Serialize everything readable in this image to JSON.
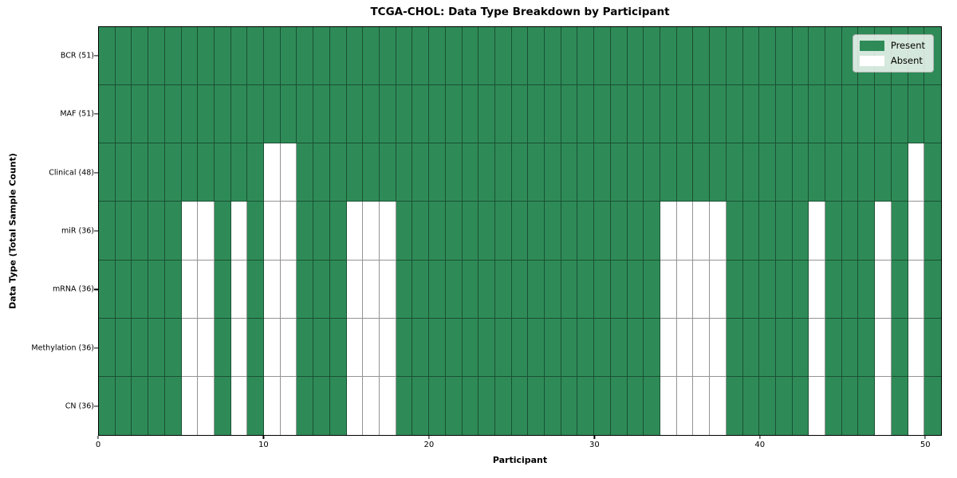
{
  "chart_data": {
    "type": "heatmap",
    "title": "TCGA-CHOL: Data Type Breakdown by Participant",
    "xlabel": "Participant",
    "ylabel": "Data Type (Total Sample Count)",
    "x_ticks": [
      0,
      10,
      20,
      30,
      40,
      50
    ],
    "x_range": [
      0,
      51
    ],
    "n_cols": 51,
    "cell_values": {
      "present": 1,
      "absent": 0
    },
    "rows": [
      {
        "label": "BCR (51)",
        "total_samples": 51,
        "absent_participants": []
      },
      {
        "label": "MAF (51)",
        "total_samples": 51,
        "absent_participants": []
      },
      {
        "label": "Clinical (48)",
        "total_samples": 48,
        "absent_participants": [
          10,
          11,
          49
        ]
      },
      {
        "label": "miR (36)",
        "total_samples": 36,
        "absent_participants": [
          5,
          6,
          8,
          10,
          11,
          15,
          16,
          17,
          34,
          35,
          36,
          37,
          43,
          47,
          49
        ]
      },
      {
        "label": "mRNA (36)",
        "total_samples": 36,
        "absent_participants": [
          5,
          6,
          8,
          10,
          11,
          15,
          16,
          17,
          34,
          35,
          36,
          37,
          43,
          47,
          49
        ]
      },
      {
        "label": "Methylation (36)",
        "total_samples": 36,
        "absent_participants": [
          5,
          6,
          8,
          10,
          11,
          15,
          16,
          17,
          34,
          35,
          36,
          37,
          43,
          47,
          49
        ]
      },
      {
        "label": "CN (36)",
        "total_samples": 36,
        "absent_participants": [
          5,
          6,
          8,
          10,
          11,
          15,
          16,
          17,
          34,
          35,
          36,
          37,
          43,
          47,
          49
        ]
      }
    ],
    "legend": [
      {
        "label": "Present",
        "color": "#2e8b57"
      },
      {
        "label": "Absent",
        "color": "#ffffff"
      }
    ],
    "legend_position": "upper right",
    "colors": {
      "present": "#2e8b57",
      "absent": "#ffffff",
      "gridline": "rgba(0,0,0,0.42)",
      "spine": "#000000",
      "legend_background": "rgba(255,255,255,0.8)"
    },
    "grid": true
  }
}
